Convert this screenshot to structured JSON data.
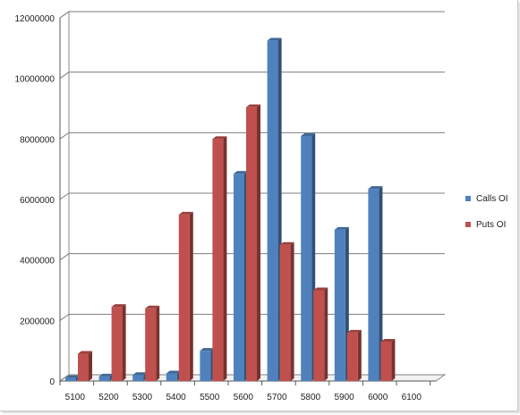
{
  "chart_data": {
    "type": "bar",
    "categories": [
      "5100",
      "5200",
      "5300",
      "5400",
      "5500",
      "5600",
      "5700",
      "5800",
      "5900",
      "6000",
      "6100"
    ],
    "series": [
      {
        "name": "Calls OI",
        "color": "#4f81bd",
        "values": [
          100000,
          150000,
          200000,
          250000,
          1000000,
          6850000,
          11250000,
          8100000,
          5000000,
          6350000,
          0
        ]
      },
      {
        "name": "Puts OI",
        "color": "#c0504d",
        "values": [
          900000,
          2450000,
          2400000,
          5500000,
          8000000,
          9050000,
          4500000,
          3000000,
          1600000,
          1300000,
          0
        ]
      }
    ],
    "y_ticks": [
      "0",
      "2000000",
      "4000000",
      "6000000",
      "8000000",
      "10000000",
      "12000000"
    ],
    "ylim": [
      0,
      12000000
    ],
    "grid": true,
    "legend_position": "right",
    "title": "",
    "xlabel": "",
    "ylabel": ""
  }
}
